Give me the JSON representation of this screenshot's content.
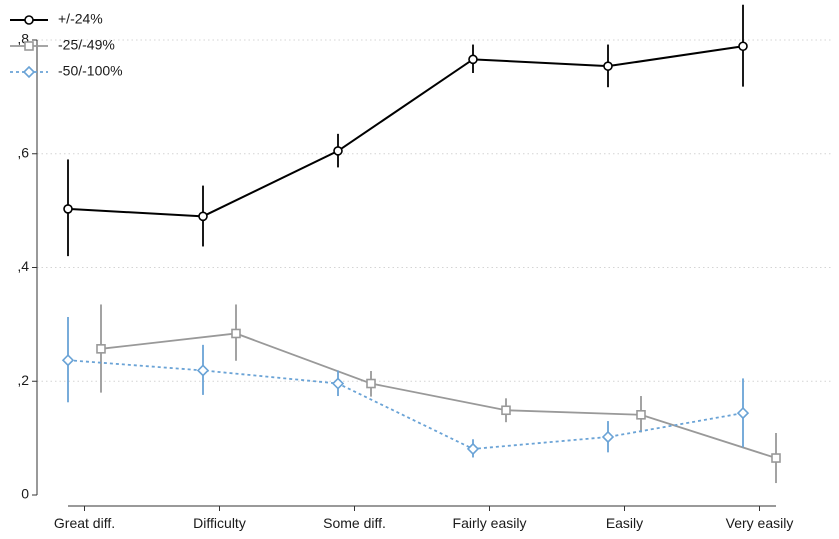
{
  "chart_data": {
    "type": "line",
    "title": "",
    "xlabel": "",
    "ylabel": "",
    "categories": [
      "Great diff.",
      "Difficulty",
      "Some diff.",
      "Fairly easily",
      "Easily",
      "Very easily"
    ],
    "ylim": [
      0,
      0.8
    ],
    "yticks": [
      0,
      0.2,
      0.4,
      0.6,
      0.8
    ],
    "ytick_labels": [
      "0",
      ",2",
      ",4",
      ",6",
      ",8"
    ],
    "grid": "horizontal dotted",
    "legend_position": "top-left",
    "series": [
      {
        "name": "+/-24%",
        "color": "#000000",
        "line": "solid",
        "marker": "circle",
        "values": [
          0.503,
          0.49,
          0.605,
          0.766,
          0.754,
          0.789
        ],
        "ci_low": [
          0.42,
          0.437,
          0.576,
          0.742,
          0.717,
          0.718
        ],
        "ci_high": [
          0.59,
          0.544,
          0.635,
          0.792,
          0.792,
          0.862
        ]
      },
      {
        "name": "-25/-49%",
        "color": "#999999",
        "line": "solid",
        "marker": "square",
        "values": [
          0.257,
          0.284,
          0.196,
          0.149,
          0.141,
          0.065
        ],
        "ci_low": [
          0.18,
          0.236,
          0.173,
          0.128,
          0.11,
          0.021
        ],
        "ci_high": [
          0.335,
          0.335,
          0.218,
          0.17,
          0.174,
          0.109
        ]
      },
      {
        "name": "-50/-100%",
        "color": "#6aa3d6",
        "line": "dotted",
        "marker": "diamond",
        "values": [
          0.237,
          0.219,
          0.196,
          0.081,
          0.102,
          0.144
        ],
        "ci_low": [
          0.163,
          0.176,
          0.174,
          0.066,
          0.075,
          0.084
        ],
        "ci_high": [
          0.313,
          0.264,
          0.219,
          0.098,
          0.13,
          0.205
        ]
      }
    ]
  }
}
